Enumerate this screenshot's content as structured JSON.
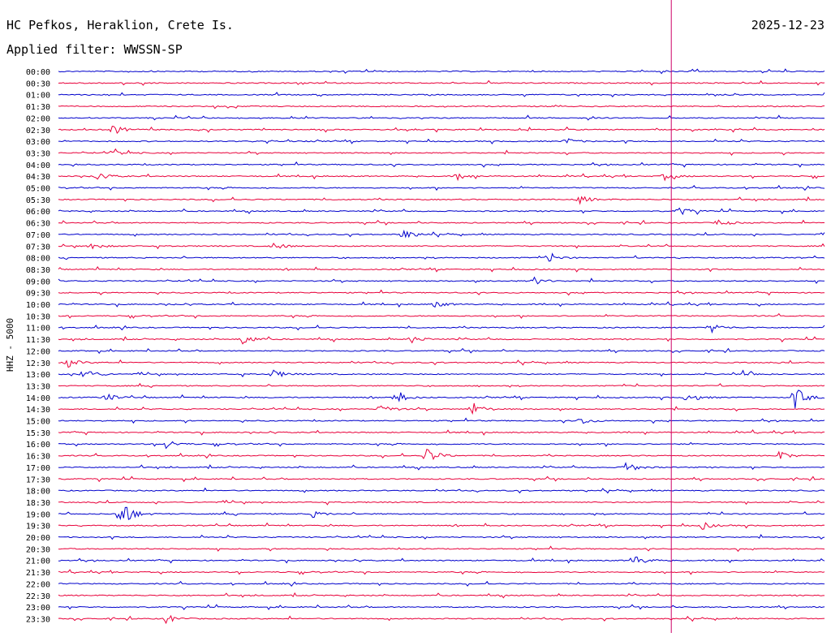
{
  "header": {
    "station": "HC Pefkos, Heraklion, Crete Is.",
    "date": "2025-12-23",
    "filter": "Applied filter: WWSSN-SP"
  },
  "chart_data": {
    "type": "line",
    "title": "HC Pefkos, Heraklion, Crete Is.",
    "subtitle": "Applied filter: WWSSN-SP",
    "ylabel": "HHZ - 5000",
    "xlabel": "",
    "grid": false,
    "colors": {
      "a": "#0000cc",
      "b": "#e8003a",
      "marker": "#cc0066"
    },
    "trace_labels": [
      "00:00",
      "00:30",
      "01:00",
      "01:30",
      "02:00",
      "02:30",
      "03:00",
      "03:30",
      "04:00",
      "04:30",
      "05:00",
      "05:30",
      "06:00",
      "06:30",
      "07:00",
      "07:30",
      "08:00",
      "08:30",
      "09:00",
      "09:30",
      "10:00",
      "10:30",
      "11:00",
      "11:30",
      "12:00",
      "12:30",
      "13:00",
      "13:30",
      "14:00",
      "14:30",
      "15:00",
      "15:30",
      "16:00",
      "16:30",
      "17:00",
      "17:30",
      "18:00",
      "18:30",
      "19:00",
      "19:30",
      "20:00",
      "20:30",
      "21:00",
      "21:30",
      "22:00",
      "22:30",
      "23:00",
      "23:30"
    ],
    "current_time_fraction": 0.8,
    "events": [
      {
        "trace": "02:30",
        "pos": 0.07,
        "amp": 7
      },
      {
        "trace": "03:00",
        "pos": 0.66,
        "amp": 5
      },
      {
        "trace": "03:30",
        "pos": 0.07,
        "amp": 5
      },
      {
        "trace": "04:30",
        "pos": 0.05,
        "amp": 6
      },
      {
        "trace": "04:30",
        "pos": 0.52,
        "amp": 5
      },
      {
        "trace": "04:30",
        "pos": 0.79,
        "amp": 5
      },
      {
        "trace": "05:30",
        "pos": 0.68,
        "amp": 6
      },
      {
        "trace": "06:00",
        "pos": 0.81,
        "amp": 6
      },
      {
        "trace": "06:30",
        "pos": 0.86,
        "amp": 5
      },
      {
        "trace": "07:00",
        "pos": 0.45,
        "amp": 7
      },
      {
        "trace": "07:30",
        "pos": 0.04,
        "amp": 5
      },
      {
        "trace": "07:30",
        "pos": 0.28,
        "amp": 5
      },
      {
        "trace": "08:00",
        "pos": 0.64,
        "amp": 5
      },
      {
        "trace": "09:00",
        "pos": 0.62,
        "amp": 5
      },
      {
        "trace": "10:00",
        "pos": 0.49,
        "amp": 5
      },
      {
        "trace": "11:00",
        "pos": 0.85,
        "amp": 7
      },
      {
        "trace": "11:30",
        "pos": 0.24,
        "amp": 8
      },
      {
        "trace": "11:30",
        "pos": 0.46,
        "amp": 5
      },
      {
        "trace": "12:30",
        "pos": 0.01,
        "amp": 7
      },
      {
        "trace": "13:00",
        "pos": 0.03,
        "amp": 12
      },
      {
        "trace": "13:00",
        "pos": 0.28,
        "amp": 6
      },
      {
        "trace": "13:00",
        "pos": 0.89,
        "amp": 6
      },
      {
        "trace": "14:00",
        "pos": 0.06,
        "amp": 6
      },
      {
        "trace": "14:00",
        "pos": 0.44,
        "amp": 8
      },
      {
        "trace": "14:00",
        "pos": 0.82,
        "amp": 8
      },
      {
        "trace": "14:00",
        "pos": 0.96,
        "amp": 16
      },
      {
        "trace": "14:30",
        "pos": 0.42,
        "amp": 7
      },
      {
        "trace": "14:30",
        "pos": 0.54,
        "amp": 9
      },
      {
        "trace": "15:00",
        "pos": 0.68,
        "amp": 6
      },
      {
        "trace": "16:00",
        "pos": 0.14,
        "amp": 6
      },
      {
        "trace": "16:30",
        "pos": 0.48,
        "amp": 12
      },
      {
        "trace": "16:30",
        "pos": 0.94,
        "amp": 6
      },
      {
        "trace": "17:00",
        "pos": 0.74,
        "amp": 8
      },
      {
        "trace": "19:00",
        "pos": 0.08,
        "amp": 24
      },
      {
        "trace": "19:00",
        "pos": 0.33,
        "amp": 5
      },
      {
        "trace": "19:30",
        "pos": 0.84,
        "amp": 5
      },
      {
        "trace": "21:00",
        "pos": 0.75,
        "amp": 8
      },
      {
        "trace": "23:30",
        "pos": 0.14,
        "amp": 6
      }
    ]
  }
}
